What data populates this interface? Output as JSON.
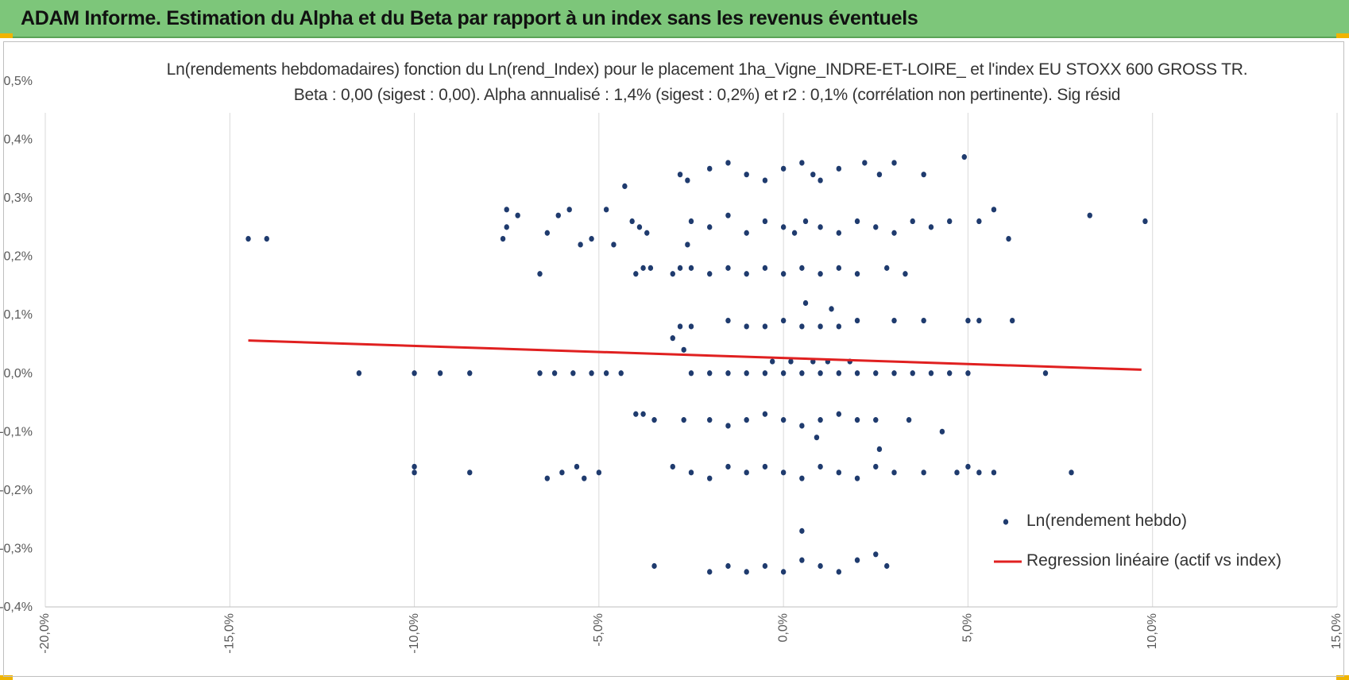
{
  "header": {
    "title": "ADAM Informe. Estimation du Alpha et du Beta par rapport à un index sans les revenus éventuels"
  },
  "colors": {
    "header_bg": "#7dc67a",
    "points": "#1f3b6e",
    "regression": "#e02020",
    "corner": "#f0b400"
  },
  "chart_data": {
    "type": "scatter",
    "title": "Ln(rendements hebdomadaires) fonction du Ln(rend_Index) pour le placement 1ha_Vigne_INDRE-ET-LOIRE_ et l'index EU STOXX 600 GROSS TR.",
    "subtitle": "Beta : 0,00 (sigest : 0,00). Alpha annualisé : 1,4% (sigest : 0,2%) et r2 : 0,1% (corrélation non pertinente). Sig résid",
    "xlim": [
      -0.2,
      0.15
    ],
    "ylim": [
      -0.004,
      0.005
    ],
    "x_ticks": [
      "-20,0%",
      "-15,0%",
      "-10,0%",
      "-5,0%",
      "0,0%",
      "5,0%",
      "10,0%",
      "15,0%"
    ],
    "y_ticks": [
      "-0,4%",
      "-0,3%",
      "-0,2%",
      "-0,1%",
      "0,0%",
      "0,1%",
      "0,2%",
      "0,3%",
      "0,4%",
      "0,5%"
    ],
    "grid": "vertical",
    "legend_position": "bottom-right",
    "series": [
      {
        "name": "Ln(rendement hebdo)",
        "kind": "scatter",
        "points": [
          [
            -0.145,
            0.0023
          ],
          [
            -0.14,
            0.0023
          ],
          [
            -0.115,
            0.0
          ],
          [
            -0.1,
            0.0
          ],
          [
            -0.093,
            0.0
          ],
          [
            -0.085,
            0.0
          ],
          [
            -0.1,
            -0.0016
          ],
          [
            -0.1,
            -0.0017
          ],
          [
            -0.085,
            -0.0017
          ],
          [
            -0.075,
            0.0028
          ],
          [
            -0.075,
            0.0025
          ],
          [
            -0.076,
            0.0023
          ],
          [
            -0.072,
            0.0027
          ],
          [
            -0.066,
            0.0017
          ],
          [
            -0.064,
            0.0024
          ],
          [
            -0.061,
            0.0027
          ],
          [
            -0.058,
            0.0028
          ],
          [
            -0.055,
            0.0022
          ],
          [
            -0.052,
            0.0023
          ],
          [
            -0.048,
            0.0028
          ],
          [
            -0.046,
            0.0022
          ],
          [
            -0.064,
            -0.0018
          ],
          [
            -0.06,
            -0.0017
          ],
          [
            -0.056,
            -0.0016
          ],
          [
            -0.054,
            -0.0018
          ],
          [
            -0.05,
            -0.0017
          ],
          [
            -0.066,
            0.0
          ],
          [
            -0.062,
            0.0
          ],
          [
            -0.057,
            0.0
          ],
          [
            -0.052,
            0.0
          ],
          [
            -0.048,
            0.0
          ],
          [
            -0.044,
            0.0
          ],
          [
            -0.043,
            0.0032
          ],
          [
            -0.041,
            0.0026
          ],
          [
            -0.039,
            0.0025
          ],
          [
            -0.037,
            0.0024
          ],
          [
            -0.04,
            0.0017
          ],
          [
            -0.038,
            0.0018
          ],
          [
            -0.036,
            0.0018
          ],
          [
            -0.04,
            -0.0007
          ],
          [
            -0.038,
            -0.0007
          ],
          [
            -0.035,
            -0.0008
          ],
          [
            -0.035,
            -0.0033
          ],
          [
            -0.03,
            0.0017
          ],
          [
            -0.028,
            0.0018
          ],
          [
            -0.026,
            0.0022
          ],
          [
            -0.028,
            0.0034
          ],
          [
            -0.026,
            0.0033
          ],
          [
            -0.02,
            0.0035
          ],
          [
            -0.015,
            0.0036
          ],
          [
            -0.01,
            0.0034
          ],
          [
            -0.005,
            0.0033
          ],
          [
            0.0,
            0.0035
          ],
          [
            0.005,
            0.0036
          ],
          [
            0.008,
            0.0034
          ],
          [
            0.01,
            0.0033
          ],
          [
            0.015,
            0.0035
          ],
          [
            0.022,
            0.0036
          ],
          [
            0.026,
            0.0034
          ],
          [
            0.03,
            0.0036
          ],
          [
            0.038,
            0.0034
          ],
          [
            0.049,
            0.0037
          ],
          [
            -0.025,
            0.0026
          ],
          [
            -0.02,
            0.0025
          ],
          [
            -0.015,
            0.0027
          ],
          [
            -0.01,
            0.0024
          ],
          [
            -0.005,
            0.0026
          ],
          [
            0.0,
            0.0025
          ],
          [
            0.003,
            0.0024
          ],
          [
            0.006,
            0.0026
          ],
          [
            0.01,
            0.0025
          ],
          [
            0.015,
            0.0024
          ],
          [
            0.02,
            0.0026
          ],
          [
            0.025,
            0.0025
          ],
          [
            0.03,
            0.0024
          ],
          [
            0.035,
            0.0026
          ],
          [
            0.04,
            0.0025
          ],
          [
            0.045,
            0.0026
          ],
          [
            0.053,
            0.0026
          ],
          [
            0.057,
            0.0028
          ],
          [
            0.061,
            0.0023
          ],
          [
            0.083,
            0.0027
          ],
          [
            0.098,
            0.0026
          ],
          [
            -0.025,
            0.0018
          ],
          [
            -0.02,
            0.0017
          ],
          [
            -0.015,
            0.0018
          ],
          [
            -0.01,
            0.0017
          ],
          [
            -0.005,
            0.0018
          ],
          [
            0.0,
            0.0017
          ],
          [
            0.005,
            0.0018
          ],
          [
            0.01,
            0.0017
          ],
          [
            0.015,
            0.0018
          ],
          [
            0.02,
            0.0017
          ],
          [
            0.028,
            0.0018
          ],
          [
            0.033,
            0.0017
          ],
          [
            -0.028,
            0.0008
          ],
          [
            -0.025,
            0.0008
          ],
          [
            -0.015,
            0.0009
          ],
          [
            -0.01,
            0.0008
          ],
          [
            -0.005,
            0.0008
          ],
          [
            0.0,
            0.0009
          ],
          [
            0.005,
            0.0008
          ],
          [
            0.01,
            0.0008
          ],
          [
            0.015,
            0.0008
          ],
          [
            0.02,
            0.0009
          ],
          [
            0.03,
            0.0009
          ],
          [
            0.038,
            0.0009
          ],
          [
            0.05,
            0.0009
          ],
          [
            0.053,
            0.0009
          ],
          [
            0.062,
            0.0009
          ],
          [
            0.006,
            0.0012
          ],
          [
            0.013,
            0.0011
          ],
          [
            -0.03,
            0.0006
          ],
          [
            -0.027,
            0.0004
          ],
          [
            -0.025,
            0.0
          ],
          [
            -0.02,
            0.0
          ],
          [
            -0.015,
            0.0
          ],
          [
            -0.01,
            0.0
          ],
          [
            -0.005,
            0.0
          ],
          [
            0.0,
            0.0
          ],
          [
            0.005,
            0.0
          ],
          [
            0.01,
            0.0
          ],
          [
            0.015,
            0.0
          ],
          [
            0.02,
            0.0
          ],
          [
            0.025,
            0.0
          ],
          [
            0.03,
            0.0
          ],
          [
            0.035,
            0.0
          ],
          [
            0.04,
            0.0
          ],
          [
            0.045,
            0.0
          ],
          [
            0.05,
            0.0
          ],
          [
            0.071,
            0.0
          ],
          [
            -0.003,
            0.0002
          ],
          [
            0.002,
            0.0002
          ],
          [
            0.008,
            0.0002
          ],
          [
            0.012,
            0.0002
          ],
          [
            0.018,
            0.0002
          ],
          [
            -0.027,
            -0.0008
          ],
          [
            -0.02,
            -0.0008
          ],
          [
            -0.015,
            -0.0009
          ],
          [
            -0.01,
            -0.0008
          ],
          [
            -0.005,
            -0.0007
          ],
          [
            0.0,
            -0.0008
          ],
          [
            0.005,
            -0.0009
          ],
          [
            0.01,
            -0.0008
          ],
          [
            0.015,
            -0.0007
          ],
          [
            0.02,
            -0.0008
          ],
          [
            0.025,
            -0.0008
          ],
          [
            0.034,
            -0.0008
          ],
          [
            0.043,
            -0.001
          ],
          [
            0.009,
            -0.0011
          ],
          [
            -0.03,
            -0.0016
          ],
          [
            -0.025,
            -0.0017
          ],
          [
            -0.02,
            -0.0018
          ],
          [
            -0.015,
            -0.0016
          ],
          [
            -0.01,
            -0.0017
          ],
          [
            -0.005,
            -0.0016
          ],
          [
            0.0,
            -0.0017
          ],
          [
            0.005,
            -0.0018
          ],
          [
            0.01,
            -0.0016
          ],
          [
            0.015,
            -0.0017
          ],
          [
            0.02,
            -0.0018
          ],
          [
            0.025,
            -0.0016
          ],
          [
            0.03,
            -0.0017
          ],
          [
            0.038,
            -0.0017
          ],
          [
            0.047,
            -0.0017
          ],
          [
            0.05,
            -0.0016
          ],
          [
            0.053,
            -0.0017
          ],
          [
            0.057,
            -0.0017
          ],
          [
            0.078,
            -0.0017
          ],
          [
            0.026,
            -0.0013
          ],
          [
            -0.02,
            -0.0034
          ],
          [
            -0.015,
            -0.0033
          ],
          [
            -0.01,
            -0.0034
          ],
          [
            -0.005,
            -0.0033
          ],
          [
            0.0,
            -0.0034
          ],
          [
            0.005,
            -0.0032
          ],
          [
            0.01,
            -0.0033
          ],
          [
            0.015,
            -0.0034
          ],
          [
            0.02,
            -0.0032
          ],
          [
            0.025,
            -0.0031
          ],
          [
            0.028,
            -0.0033
          ],
          [
            0.005,
            -0.0027
          ]
        ]
      },
      {
        "name": "Regression linéaire (actif vs index)",
        "kind": "line",
        "points": [
          [
            -0.145,
            0.00056
          ],
          [
            0.097,
            6e-05
          ]
        ]
      }
    ]
  }
}
